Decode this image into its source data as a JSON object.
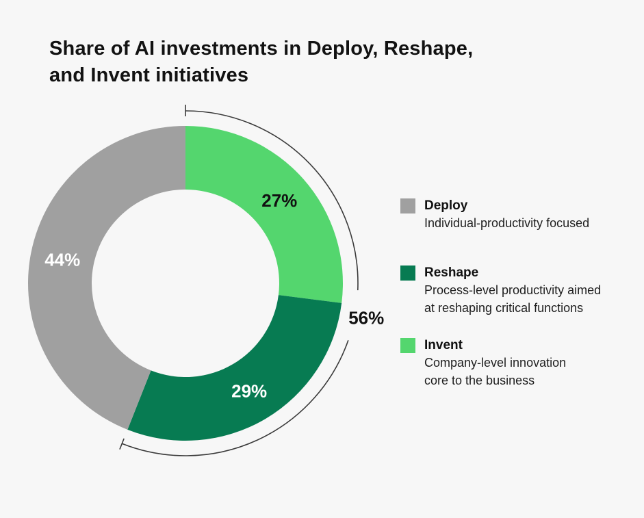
{
  "title": "Share of AI investments in Deploy, Reshape,\nand Invent initiatives",
  "colors": {
    "background": "#f7f7f7",
    "deploy_gray": "#a0a0a0",
    "reshape_dark_green": "#077b52",
    "invent_light_green": "#54d66e",
    "bracket_line": "#3a3a3a",
    "title_text": "#121212"
  },
  "legend": {
    "items": [
      {
        "label": "Deploy",
        "desc": "Individual-productivity focused",
        "color": "#a0a0a0"
      },
      {
        "label": "Reshape",
        "desc": "Process-level productivity aimed\nat reshaping critical functions",
        "color": "#077b52"
      },
      {
        "label": "Invent",
        "desc": "Company-level innovation\ncore to the business",
        "color": "#54d66e"
      }
    ]
  },
  "chart_data": {
    "type": "pie",
    "subtype": "donut",
    "title": "Share of AI investments in Deploy, Reshape, and Invent initiatives",
    "categories": [
      "Invent",
      "Reshape",
      "Deploy"
    ],
    "values": [
      27,
      29,
      44
    ],
    "slices": [
      {
        "label": "Invent",
        "value": 27,
        "pct_label": "27%",
        "color": "#54d66e",
        "pct_label_color": "#111111"
      },
      {
        "label": "Reshape",
        "value": 29,
        "pct_label": "29%",
        "color": "#077b52",
        "pct_label_color": "#ffffff"
      },
      {
        "label": "Deploy",
        "value": 44,
        "pct_label": "44%",
        "color": "#a0a0a0",
        "pct_label_color": "#ffffff"
      }
    ],
    "start_angle_deg": 0,
    "direction": "clockwise",
    "donut_hole_ratio": 0.6,
    "legend_position": "right",
    "bracket": {
      "label": "56%",
      "sum": 56,
      "covers": [
        "Invent",
        "Reshape"
      ],
      "label_color": "#111111",
      "line_color": "#3a3a3a"
    }
  }
}
